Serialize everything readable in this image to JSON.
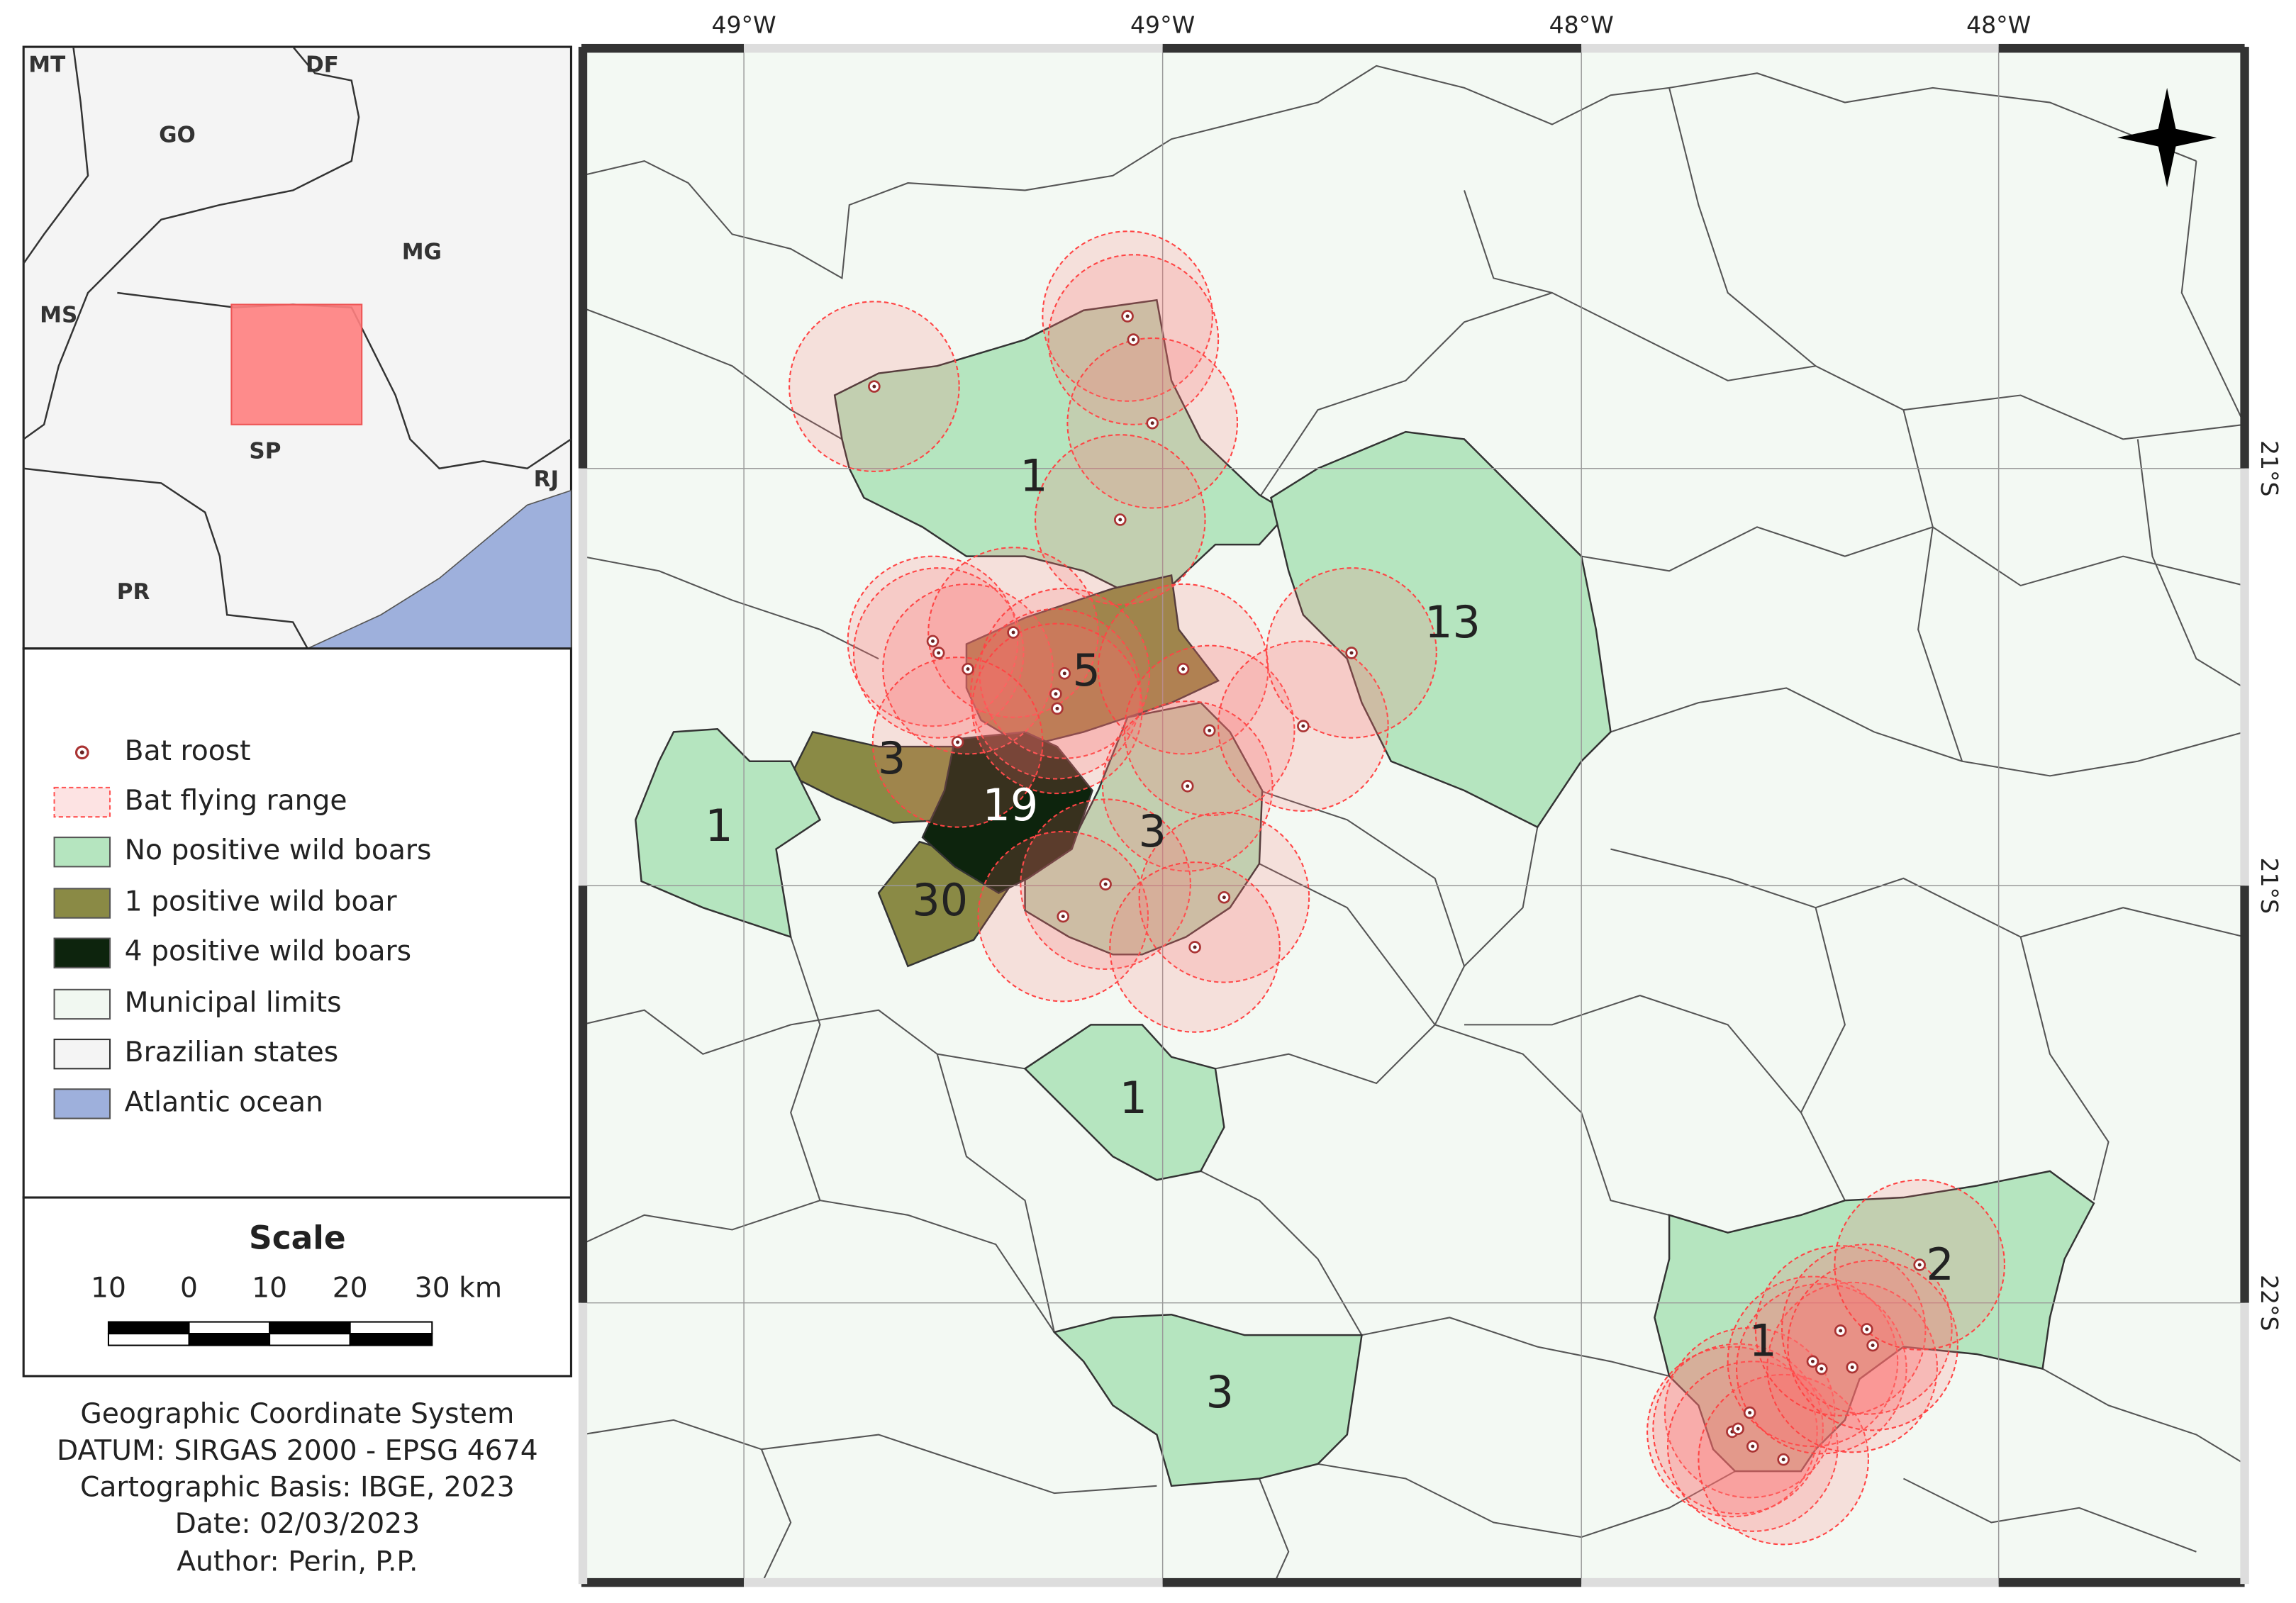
{
  "inset": {
    "labels": [
      "MT",
      "DF",
      "GO",
      "MG",
      "MS",
      "SP",
      "RJ",
      "PR"
    ]
  },
  "legend": {
    "items": [
      "Bat roost",
      "Bat flying range",
      "No positive wild boars",
      "1 positive wild boar",
      "4 positive wild boars",
      "Municipal limits",
      "Brazilian states",
      "Atlantic ocean"
    ]
  },
  "scale": {
    "title": "Scale",
    "labels": [
      "10",
      "0",
      "10",
      "20",
      "30 km"
    ]
  },
  "info": {
    "lines": [
      "Geographic Coordinate System",
      "DATUM: SIRGAS 2000 - EPSG 4674",
      "Cartographic Basis: IBGE, 2023",
      "Date: 02/03/2023",
      "Author: Perin, P.P."
    ]
  },
  "map": {
    "longitude_labels": [
      "49°W",
      "49°W",
      "48°W",
      "48°W"
    ],
    "latitude_labels": [
      "21°S",
      "21°S",
      "22°S"
    ],
    "counts": [
      1,
      13,
      5,
      3,
      19,
      1,
      3,
      30,
      1,
      3,
      2,
      1
    ]
  }
}
